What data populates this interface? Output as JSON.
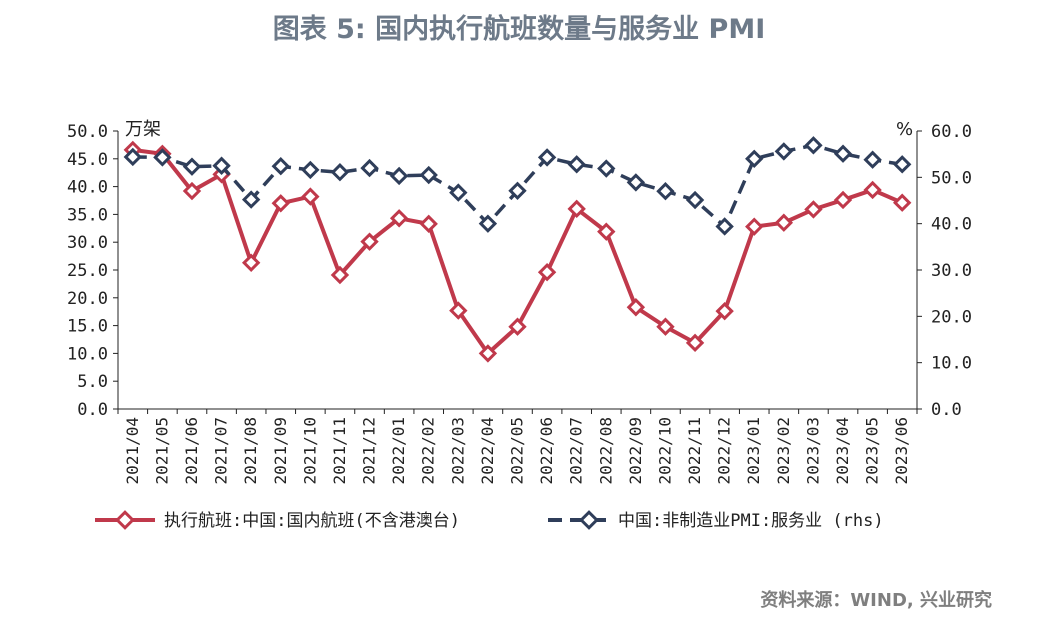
{
  "title": "图表 5:  国内执行航班数量与服务业 PMI",
  "source": "资料来源：WIND, 兴业研究",
  "chart_data": {
    "type": "line",
    "categories": [
      "2021/04",
      "2021/05",
      "2021/06",
      "2021/07",
      "2021/08",
      "2021/09",
      "2021/10",
      "2021/11",
      "2021/12",
      "2022/01",
      "2022/02",
      "2022/03",
      "2022/04",
      "2022/05",
      "2022/06",
      "2022/07",
      "2022/08",
      "2022/09",
      "2022/10",
      "2022/11",
      "2022/12",
      "2023/01",
      "2023/02",
      "2023/03",
      "2023/04",
      "2023/05",
      "2023/06"
    ],
    "y_left": {
      "unit_label": "万架",
      "ylim": [
        0,
        50
      ],
      "ticks": [
        "0.0",
        "5.0",
        "10.0",
        "15.0",
        "20.0",
        "25.0",
        "30.0",
        "35.0",
        "40.0",
        "45.0",
        "50.0"
      ]
    },
    "y_right": {
      "unit_label": "%",
      "ylim": [
        0,
        60
      ],
      "ticks": [
        "0.0",
        "10.0",
        "20.0",
        "30.0",
        "40.0",
        "50.0",
        "60.0"
      ]
    },
    "series": [
      {
        "name": "执行航班:中国:国内航班(不含港澳台)",
        "axis": "left",
        "color": "#c0394b",
        "style": "solid",
        "values": [
          46.6,
          45.9,
          39.2,
          42.2,
          26.3,
          37.0,
          38.2,
          24.1,
          30.1,
          34.3,
          33.3,
          17.7,
          10.0,
          14.8,
          24.6,
          36.0,
          31.9,
          18.3,
          14.8,
          11.9,
          17.6,
          32.8,
          33.5,
          35.9,
          37.6,
          39.4,
          37.1
        ]
      },
      {
        "name": "中国:非制造业PMI:服务业 (rhs)",
        "axis": "right",
        "color": "#2f3e5a",
        "style": "dashed",
        "values": [
          54.4,
          54.3,
          52.3,
          52.5,
          45.2,
          52.4,
          51.6,
          51.1,
          52.0,
          50.3,
          50.5,
          46.7,
          40.0,
          47.1,
          54.3,
          52.8,
          51.9,
          48.9,
          47.0,
          45.1,
          39.4,
          54.0,
          55.6,
          56.9,
          55.1,
          53.8,
          52.8
        ]
      }
    ],
    "grid": false,
    "legend_position": "bottom"
  }
}
